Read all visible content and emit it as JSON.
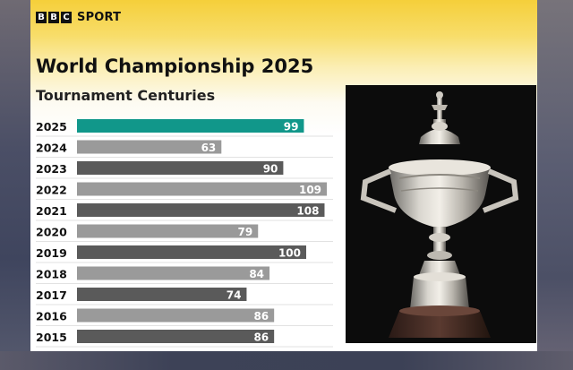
{
  "brand": {
    "letters": [
      "B",
      "B",
      "C"
    ],
    "sport": "SPORT"
  },
  "title": "World Championship 2025",
  "subtitle": "Tournament Centuries",
  "colors": {
    "highlight": "#11978a",
    "bar_light": "#9a9a9a",
    "bar_dark": "#5a5a5a",
    "accent_yellow": "#f5cf3a"
  },
  "image": {
    "name": "snooker-world-championship-trophy"
  },
  "chart_data": {
    "type": "bar",
    "orientation": "horizontal",
    "title": "World Championship 2025",
    "subtitle": "Tournament Centuries",
    "categories": [
      "2025",
      "2024",
      "2023",
      "2022",
      "2021",
      "2020",
      "2019",
      "2018",
      "2017",
      "2016",
      "2015"
    ],
    "values": [
      99,
      63,
      90,
      109,
      108,
      79,
      100,
      84,
      74,
      86,
      86
    ],
    "highlight": "2025",
    "xlabel": "",
    "ylabel": ""
  }
}
